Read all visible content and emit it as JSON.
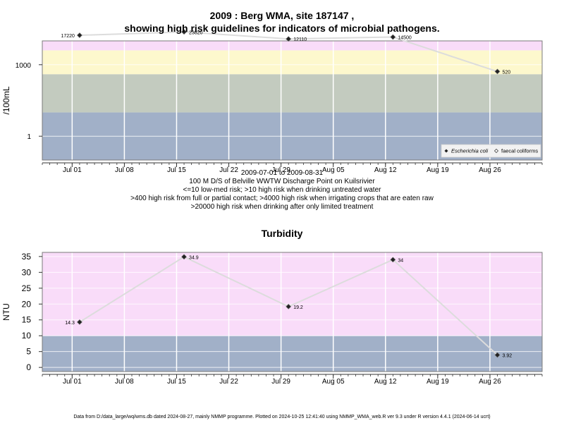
{
  "chart_data": [
    {
      "type": "line",
      "title": "2009 : Berg WMA, site 187147 ,",
      "subtitle": "showing high risk guidelines for indicators of microbial pathogens.",
      "ylabel": "/100mL",
      "yscale": "log",
      "ylim": [
        0.1,
        10000
      ],
      "y_ticks": [
        {
          "value": 1,
          "label": "1"
        },
        {
          "value": 1000,
          "label": "1000"
        }
      ],
      "x_ticks": [
        "2009-07-01",
        "2009-07-08",
        "2009-07-15",
        "2009-07-22",
        "2009-07-29",
        "2009-08-05",
        "2009-08-12",
        "2009-08-19",
        "2009-08-26"
      ],
      "x_tick_labels": [
        "Jul 01",
        "Jul 08",
        "Jul 15",
        "Jul 22",
        "Jul 29",
        "Aug 05",
        "Aug 12",
        "Aug 19",
        "Aug 26"
      ],
      "xlim": [
        "2009-06-27",
        "2009-09-02"
      ],
      "bands": [
        {
          "from": 0.1,
          "to": 10,
          "color": "#a1b0c8"
        },
        {
          "from": 10,
          "to": 400,
          "color": "#c3cbbf"
        },
        {
          "from": 400,
          "to": 4000,
          "color": "#fdf8cd"
        },
        {
          "from": 4000,
          "to": 20000,
          "color": "#f9dcf9"
        },
        {
          "from": 20000,
          "to": 40000,
          "color": "#f6b8cf"
        }
      ],
      "series": [
        {
          "name": "Escherichia coli",
          "x": [
            "2009-07-02",
            "2009-07-16",
            "2009-07-30",
            "2009-08-13",
            "2009-08-27"
          ],
          "y": [
            17220,
            23820,
            12110,
            14500,
            520
          ],
          "labels": [
            "17220",
            "23820",
            "12110",
            "14500",
            "520"
          ]
        }
      ],
      "legend": {
        "position": "bottom-right",
        "items": [
          "Escherichia coli",
          "faecal coliforms"
        ]
      },
      "caption": [
        "2009-07-01 to 2009-08-31",
        "100 M D/S of Belville WWTW Discharge Point on Kuilsrivier",
        "<=10 low-med risk; >10 high risk when drinking untreated water",
        ">400 high risk from full or partial contact; >4000 high risk when irrigating crops that are eaten raw",
        ">20000 high risk when drinking after only limited treatment"
      ]
    },
    {
      "type": "line",
      "title": "Turbidity",
      "ylabel": "NTU",
      "ylim": [
        -1.3,
        36.3
      ],
      "y_ticks": [
        0,
        5,
        10,
        15,
        20,
        25,
        30,
        35
      ],
      "x_ticks": [
        "2009-07-01",
        "2009-07-08",
        "2009-07-15",
        "2009-07-22",
        "2009-07-29",
        "2009-08-05",
        "2009-08-12",
        "2009-08-19",
        "2009-08-26"
      ],
      "x_tick_labels": [
        "Jul 01",
        "Jul 08",
        "Jul 15",
        "Jul 22",
        "Jul 29",
        "Aug 05",
        "Aug 12",
        "Aug 19",
        "Aug 26"
      ],
      "xlim": [
        "2009-06-27",
        "2009-09-02"
      ],
      "bands": [
        {
          "from": -1.3,
          "to": 10,
          "color": "#a1b0c8"
        },
        {
          "from": 10,
          "to": 36.3,
          "color": "#f9dcf9"
        }
      ],
      "series": [
        {
          "x": [
            "2009-07-02",
            "2009-07-16",
            "2009-07-30",
            "2009-08-13",
            "2009-08-27"
          ],
          "y": [
            14.3,
            34.9,
            19.2,
            34,
            3.92
          ],
          "labels": [
            "14.3",
            "34.9",
            "19.2",
            "34",
            "3.92"
          ]
        }
      ]
    }
  ],
  "footer": "Data from D:/data_large/wq/wms.db dated 2024-08-27, mainly NMMP programme. Plotted on 2024-10-25 12:41:40 using NMMP_WMA_web.R ver 9.3 under R version 4.4.1 (2024-06-14 ucrt)"
}
